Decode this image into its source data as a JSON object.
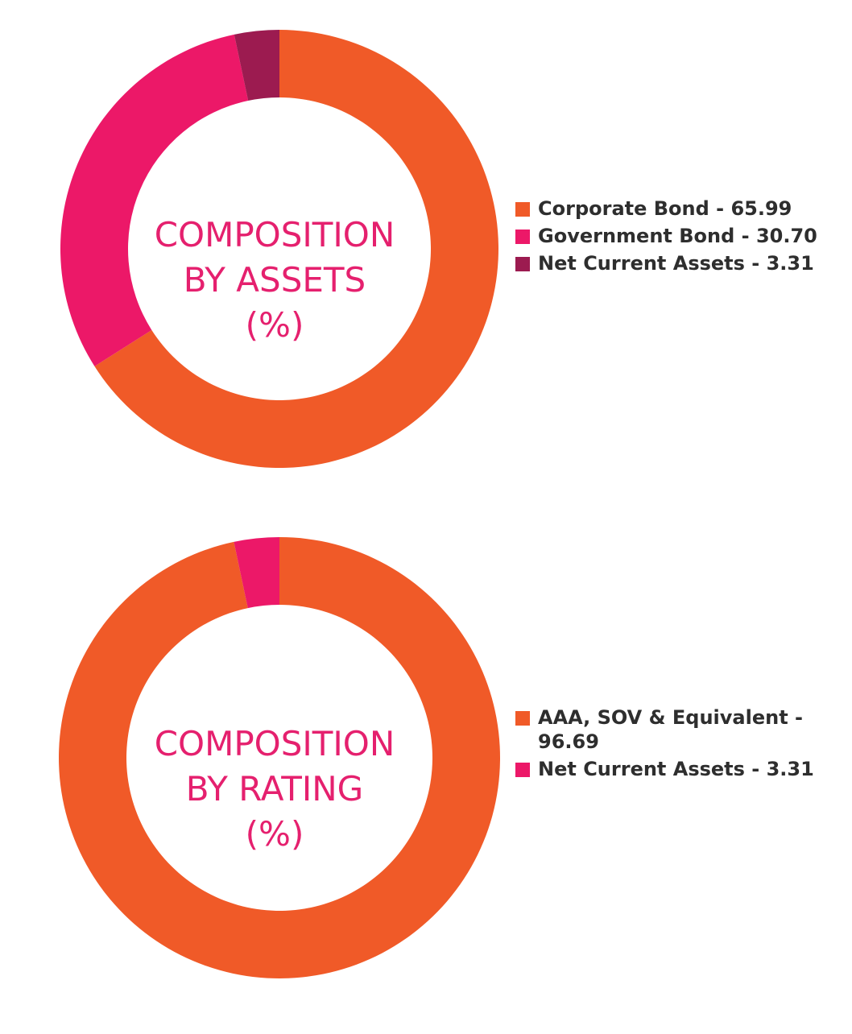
{
  "colors": {
    "orange": "#F05A28",
    "pink": "#EC1868",
    "maroon": "#9C1B50",
    "title": "#E5206E",
    "legend_text": "#2e2e2e"
  },
  "chart_data": [
    {
      "type": "pie",
      "variant": "donut",
      "title": "COMPOSITION BY ASSETS (%)",
      "title_lines": [
        "COMPOSITION",
        "BY ASSETS",
        "(%)"
      ],
      "categories": [
        "Corporate Bond",
        "Government Bond",
        "Net Current Assets"
      ],
      "values": [
        65.99,
        30.7,
        3.31
      ],
      "colors": [
        "#F05A28",
        "#EC1868",
        "#9C1B50"
      ],
      "legend_labels": [
        "Corporate Bond - 65.99",
        "Government Bond - 30.70",
        "Net Current Assets - 3.31"
      ],
      "legend_position": "right"
    },
    {
      "type": "pie",
      "variant": "donut",
      "title": "COMPOSITION BY RATING (%)",
      "title_lines": [
        "COMPOSITION",
        "BY RATING",
        "(%)"
      ],
      "categories": [
        "AAA, SOV & Equivalent",
        "Net Current Assets"
      ],
      "values": [
        96.69,
        3.31
      ],
      "colors": [
        "#F05A28",
        "#EC1868"
      ],
      "legend_labels": [
        "AAA, SOV & Equivalent - 96.69",
        "Net Current Assets - 3.31"
      ],
      "legend_position": "right"
    }
  ]
}
